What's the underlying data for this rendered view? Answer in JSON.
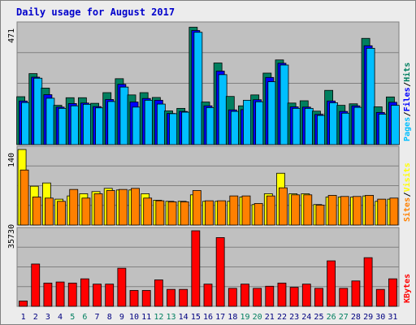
{
  "title": "Daily usage for August 2017",
  "colors": {
    "background": "#ececec",
    "panel": "#c0c0c0",
    "title": "#0000cc",
    "hits": "#007f5f",
    "files": "#0000ff",
    "pages": "#00bfff",
    "visits": "#ffff00",
    "sites": "#ff8000",
    "kbytes": "#ff0000",
    "weekend": "#007f5f",
    "weekday": "#000080"
  },
  "chart_data": [
    {
      "type": "bar",
      "panel": "top",
      "ymax_label": "471",
      "ylim": [
        0,
        471
      ],
      "legend": [
        {
          "text": "Pages",
          "color": "#00bfff"
        },
        {
          "text": "Files",
          "color": "#0000ff"
        },
        {
          "text": "Hits",
          "color": "#007f5f"
        }
      ],
      "categories": [
        "1",
        "2",
        "3",
        "4",
        "5",
        "6",
        "7",
        "8",
        "9",
        "10",
        "11",
        "12",
        "13",
        "14",
        "15",
        "16",
        "17",
        "18",
        "19",
        "20",
        "21",
        "22",
        "23",
        "24",
        "25",
        "26",
        "27",
        "28",
        "29",
        "30",
        "31"
      ],
      "weekend_days": [
        5,
        6,
        12,
        13,
        19,
        20,
        26,
        27
      ],
      "series": [
        {
          "name": "Hits",
          "values": [
            189,
            280,
            223,
            155,
            185,
            185,
            163,
            205,
            260,
            196,
            205,
            186,
            133,
            143,
            463,
            168,
            322,
            190,
            153,
            196,
            282,
            334,
            164,
            173,
            132,
            214,
            155,
            161,
            419,
            149,
            188
          ]
        },
        {
          "name": "Files",
          "values": [
            172,
            266,
            197,
            148,
            162,
            164,
            150,
            178,
            238,
            168,
            182,
            175,
            123,
            131,
            450,
            153,
            290,
            137,
            138,
            177,
            265,
            321,
            149,
            148,
            119,
            172,
            131,
            153,
            390,
            127,
            167
          ]
        },
        {
          "name": "Pages",
          "values": [
            166,
            262,
            183,
            143,
            153,
            159,
            145,
            170,
            227,
            148,
            175,
            160,
            122,
            128,
            443,
            146,
            276,
            131,
            175,
            169,
            248,
            314,
            143,
            143,
            115,
            165,
            124,
            147,
            380,
            120,
            155
          ]
        }
      ]
    },
    {
      "type": "bar",
      "panel": "middle",
      "ymax_label": "140",
      "ylim": [
        0,
        140
      ],
      "legend": [
        {
          "text": "Sites",
          "color": "#ff8000"
        },
        {
          "text": "Visits",
          "color": "#ffff00"
        }
      ],
      "categories": [
        "1",
        "2",
        "3",
        "4",
        "5",
        "6",
        "7",
        "8",
        "9",
        "10",
        "11",
        "12",
        "13",
        "14",
        "15",
        "16",
        "17",
        "18",
        "19",
        "20",
        "21",
        "22",
        "23",
        "24",
        "25",
        "26",
        "27",
        "28",
        "29",
        "30",
        "31"
      ],
      "series": [
        {
          "name": "Visits",
          "values": [
            140,
            72,
            78,
            48,
            54,
            58,
            62,
            68,
            65,
            65,
            58,
            46,
            44,
            44,
            56,
            44,
            44,
            44,
            52,
            38,
            58,
            96,
            58,
            58,
            38,
            52,
            52,
            52,
            54,
            44,
            48
          ]
        },
        {
          "name": "Sites",
          "values": [
            102,
            52,
            50,
            44,
            66,
            50,
            58,
            64,
            66,
            68,
            50,
            45,
            43,
            43,
            64,
            45,
            45,
            54,
            54,
            40,
            54,
            69,
            56,
            56,
            37,
            55,
            53,
            53,
            55,
            48,
            50
          ]
        }
      ]
    },
    {
      "type": "bar",
      "panel": "bottom",
      "ymax_label": "35730",
      "ylim": [
        0,
        35730
      ],
      "legend": [
        {
          "text": "KBytes",
          "color": "#ff0000"
        }
      ],
      "categories": [
        "1",
        "2",
        "3",
        "4",
        "5",
        "6",
        "7",
        "8",
        "9",
        "10",
        "11",
        "12",
        "13",
        "14",
        "15",
        "16",
        "17",
        "18",
        "19",
        "20",
        "21",
        "22",
        "23",
        "24",
        "25",
        "26",
        "27",
        "28",
        "29",
        "30",
        "31"
      ],
      "series": [
        {
          "name": "KBytes",
          "values": [
            2500,
            20000,
            11000,
            11500,
            11000,
            13000,
            10500,
            10500,
            18000,
            7500,
            7500,
            12500,
            8000,
            8000,
            35730,
            10500,
            32500,
            8500,
            10500,
            8500,
            9500,
            11000,
            9000,
            10500,
            8500,
            21500,
            8500,
            12000,
            23000,
            8000,
            13000
          ]
        }
      ]
    }
  ]
}
